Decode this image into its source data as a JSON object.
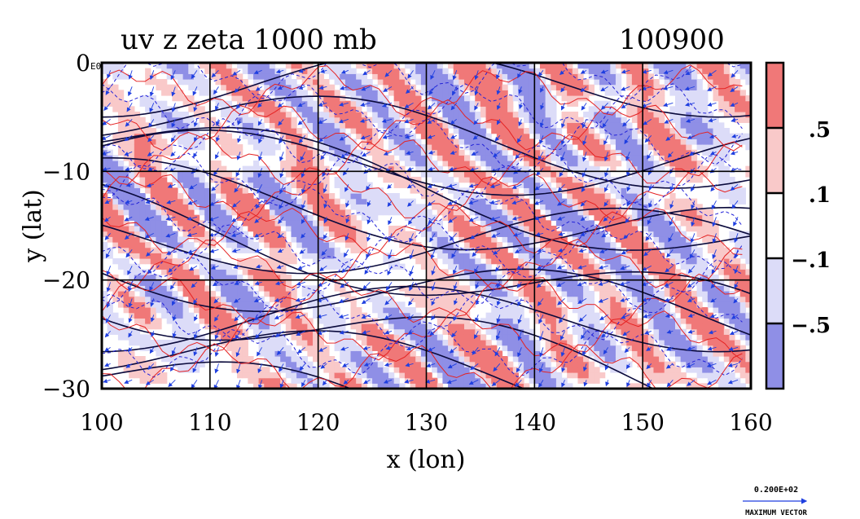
{
  "chart_data": {
    "type": "heatmap",
    "title": "uv z zeta 1000 mb",
    "date_label": "100900",
    "corner_label": "E0",
    "xlabel": "x (lon)",
    "ylabel": "y (lat)",
    "xlim": [
      100,
      160
    ],
    "ylim": [
      -30,
      0
    ],
    "x_ticks": [
      "100",
      "110",
      "120",
      "130",
      "140",
      "150",
      "160"
    ],
    "y_ticks": [
      "0",
      "−10",
      "−20",
      "−30"
    ],
    "grid": true,
    "colorbar": {
      "levels": [
        ".5",
        ".1",
        "−.1",
        "−.5"
      ],
      "colors": [
        "#f07878",
        "#f9c9c9",
        "#ffffff",
        "#dcdcf8",
        "#8f8fe6"
      ]
    },
    "contour_colors": {
      "height": "#0a0a3c",
      "positive_vorticity": "#e52222",
      "negative_vorticity": "#2222d8",
      "vectors": "#1f3fe0"
    },
    "vector_legend": {
      "value": "0.200E+02",
      "label": "MAXIMUM VECTOR"
    }
  }
}
